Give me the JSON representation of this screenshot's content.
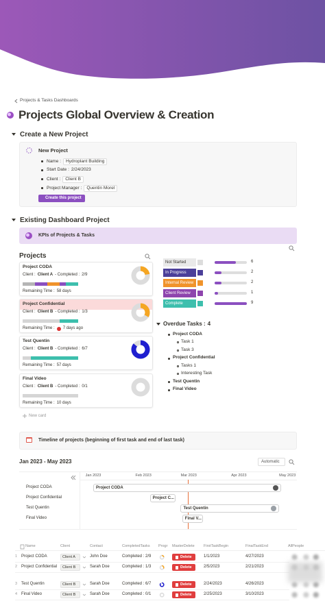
{
  "breadcrumb": "Projects & Tasks Dashboards",
  "title": "Projects Global Overview & Creation",
  "create": {
    "heading": "Create a New Project",
    "callout_title": "New Project",
    "fields": [
      {
        "label": "Name :",
        "value": "Hydroplant Building"
      },
      {
        "label": "Start Date :",
        "value": "2/24/2023"
      },
      {
        "label": "Client :",
        "value": "Client B"
      },
      {
        "label": "Project Manager :",
        "value": "Quentin Morel"
      }
    ],
    "button": "Create this project"
  },
  "existing": {
    "heading": "Existing Dashboard Project",
    "kpi_title": "KPIs of Projects & Tasks"
  },
  "projects": {
    "heading": "Projects",
    "client_label": "Client :",
    "completed_label": "- Completed :",
    "remaining_label": "Remaining Time :",
    "cards": [
      {
        "name": "Project CODA",
        "client": "Client A",
        "completed": "2/9",
        "remaining": "58 days",
        "overdue": false,
        "segments": [
          "#b5b5b5",
          "#b5b5b5",
          "#8b4fc0",
          "#8b4fc0",
          "#f0932b",
          "#f0932b",
          "#8b4fc0",
          "#3dbfad",
          "#3dbfad"
        ]
      },
      {
        "name": "Project Confidential",
        "client": "Client B",
        "completed": "1/3",
        "remaining": "7 days ago",
        "overdue": true,
        "segments": [
          "#d5d5d5",
          "#d5d5d5",
          "#3dbfad"
        ]
      },
      {
        "name": "Test Quentin",
        "client": "Client B",
        "completed": "6/7",
        "remaining": "57 days",
        "overdue": false,
        "segments": [
          "#d5d5d5",
          "#3dbfad",
          "#3dbfad",
          "#3dbfad",
          "#3dbfad",
          "#3dbfad",
          "#3dbfad"
        ]
      },
      {
        "name": "Final Video",
        "client": "Client B",
        "completed": "0/1",
        "remaining": "10 days",
        "overdue": false,
        "segments": [
          "#d5d5d5"
        ]
      }
    ],
    "new_card": "New card"
  },
  "chart_data": {
    "type": "bar",
    "orientation": "horizontal",
    "categories": [
      "Not Started",
      "In Progress",
      "Internal Review",
      "Client Review",
      "Complete"
    ],
    "category_colors": [
      "#e9e9e9",
      "#4b3f99",
      "#f0932b",
      "#8e44ad",
      "#3dbfad"
    ],
    "values": [
      6,
      2,
      2,
      1,
      9
    ],
    "color": "#8b4fc0",
    "xlim": [
      0,
      9
    ]
  },
  "overdue": {
    "heading": "Overdue Tasks :",
    "count": 4,
    "items": [
      {
        "project": "Project CODA",
        "tasks": [
          "Task 1",
          "Task 3"
        ]
      },
      {
        "project": "Project Confidential",
        "tasks": [
          "Tasks 1",
          "Interesting Task"
        ]
      },
      {
        "project": "Test Quentin",
        "tasks": []
      },
      {
        "project": "Final Video",
        "tasks": []
      }
    ]
  },
  "timeline": {
    "title": "Timeline of projects (beginning of first task and end of last task)",
    "range": "Jan 2023 - May 2023",
    "view": "Automatic",
    "months": [
      "Jan 2023",
      "Feb 2023",
      "Mar 2023",
      "Apr 2023",
      "May 2023"
    ],
    "rows": [
      "Project CODA",
      "Project Confidential",
      "Test Quentin",
      "Final Video"
    ],
    "bars": [
      "Project CODA",
      "Project C...",
      "Test Quentin",
      "Final V..."
    ]
  },
  "table": {
    "columns": [
      "Name",
      "Client",
      "Contact",
      "CompletedTasks",
      "Progr",
      "MasterDelete",
      "FirstTaskBegin",
      "FinalTaskEnd",
      "AllPeople"
    ],
    "rows": [
      {
        "num": 1,
        "name": "Project CODA",
        "client": "Client A",
        "contact": "John Doe",
        "completed": "Completed : 2/9",
        "progress": "2/9",
        "delete": "Delete",
        "begin": "1/1/2023",
        "end": "4/27/2023"
      },
      {
        "num": 2,
        "name": "Project Confidential",
        "client": "Client B",
        "contact": "Sarah Doe",
        "completed": "Completed : 1/3",
        "progress": "1/3",
        "delete": "Delete",
        "begin": "2/5/2023",
        "end": "2/21/2023"
      },
      {
        "num": 3,
        "name": "Test Quentin",
        "client": "Client B",
        "contact": "Sarah Doe",
        "completed": "Completed : 6/7",
        "progress": "6/7",
        "delete": "Delete",
        "begin": "2/24/2023",
        "end": "4/26/2023"
      },
      {
        "num": 4,
        "name": "Final Video",
        "client": "Client B",
        "contact": "Sarah Doe",
        "completed": "Completed : 0/1",
        "progress": "0/1",
        "delete": "Delete",
        "begin": "2/25/2023",
        "end": "3/10/2023"
      }
    ]
  }
}
